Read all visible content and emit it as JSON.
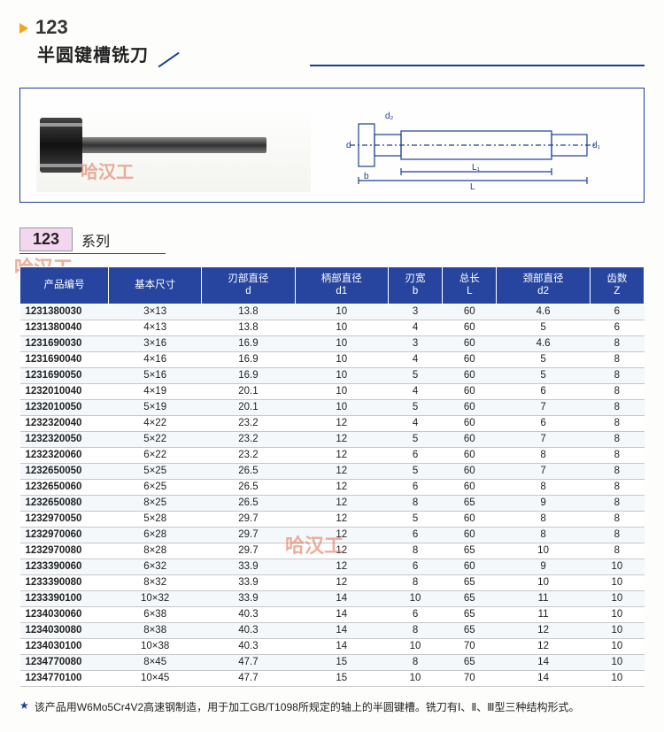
{
  "header": {
    "number": "123",
    "title": "半圆键槽铣刀"
  },
  "series": {
    "tag": "123",
    "label": "系列"
  },
  "watermark": "哈汉工",
  "diagram_labels": {
    "d": "d",
    "d1": "d1",
    "d2": "d2",
    "b": "b",
    "L": "L",
    "L1": "L1"
  },
  "table": {
    "headers": [
      "产品编号",
      "基本尺寸",
      "刃部直径\nd",
      "柄部直径\nd1",
      "刃宽\nb",
      "总长\nL",
      "颈部直径\nd2",
      "齿数\nZ"
    ],
    "rows": [
      [
        "1231380030",
        "3×13",
        "13.8",
        "10",
        "3",
        "60",
        "4.6",
        "6"
      ],
      [
        "1231380040",
        "4×13",
        "13.8",
        "10",
        "4",
        "60",
        "5",
        "6"
      ],
      [
        "1231690030",
        "3×16",
        "16.9",
        "10",
        "3",
        "60",
        "4.6",
        "8"
      ],
      [
        "1231690040",
        "4×16",
        "16.9",
        "10",
        "4",
        "60",
        "5",
        "8"
      ],
      [
        "1231690050",
        "5×16",
        "16.9",
        "10",
        "5",
        "60",
        "5",
        "8"
      ],
      [
        "1232010040",
        "4×19",
        "20.1",
        "10",
        "4",
        "60",
        "6",
        "8"
      ],
      [
        "1232010050",
        "5×19",
        "20.1",
        "10",
        "5",
        "60",
        "7",
        "8"
      ],
      [
        "1232320040",
        "4×22",
        "23.2",
        "12",
        "4",
        "60",
        "6",
        "8"
      ],
      [
        "1232320050",
        "5×22",
        "23.2",
        "12",
        "5",
        "60",
        "7",
        "8"
      ],
      [
        "1232320060",
        "6×22",
        "23.2",
        "12",
        "6",
        "60",
        "8",
        "8"
      ],
      [
        "1232650050",
        "5×25",
        "26.5",
        "12",
        "5",
        "60",
        "7",
        "8"
      ],
      [
        "1232650060",
        "6×25",
        "26.5",
        "12",
        "6",
        "60",
        "8",
        "8"
      ],
      [
        "1232650080",
        "8×25",
        "26.5",
        "12",
        "8",
        "65",
        "9",
        "8"
      ],
      [
        "1232970050",
        "5×28",
        "29.7",
        "12",
        "5",
        "60",
        "8",
        "8"
      ],
      [
        "1232970060",
        "6×28",
        "29.7",
        "12",
        "6",
        "60",
        "8",
        "8"
      ],
      [
        "1232970080",
        "8×28",
        "29.7",
        "12",
        "8",
        "65",
        "10",
        "8"
      ],
      [
        "1233390060",
        "6×32",
        "33.9",
        "12",
        "6",
        "60",
        "9",
        "10"
      ],
      [
        "1233390080",
        "8×32",
        "33.9",
        "12",
        "8",
        "65",
        "10",
        "10"
      ],
      [
        "1233390100",
        "10×32",
        "33.9",
        "14",
        "10",
        "65",
        "11",
        "10"
      ],
      [
        "1234030060",
        "6×38",
        "40.3",
        "14",
        "6",
        "65",
        "11",
        "10"
      ],
      [
        "1234030080",
        "8×38",
        "40.3",
        "14",
        "8",
        "65",
        "12",
        "10"
      ],
      [
        "1234030100",
        "10×38",
        "40.3",
        "14",
        "10",
        "70",
        "12",
        "10"
      ],
      [
        "1234770080",
        "8×45",
        "47.7",
        "15",
        "8",
        "65",
        "14",
        "10"
      ],
      [
        "1234770100",
        "10×45",
        "47.7",
        "15",
        "10",
        "70",
        "14",
        "10"
      ]
    ]
  },
  "footnote": {
    "star": "★",
    "text": "该产品用W6Mo5Cr4V2高速钢制造，用于加工GB/T1098所规定的轴上的半圆键槽。铣刀有Ⅰ、Ⅱ、Ⅲ型三种结构形式。"
  },
  "colors": {
    "accent": "#1b3f95",
    "header_bg": "#27459e",
    "triangle": "#f7a21a",
    "series_bg": "#f3d7f0"
  }
}
